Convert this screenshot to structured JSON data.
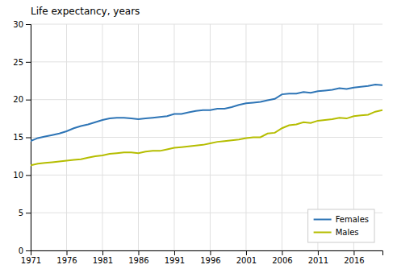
{
  "chart_data": {
    "type": "line",
    "title": "Life expectancy, years",
    "x": [
      1971,
      1972,
      1973,
      1974,
      1975,
      1976,
      1977,
      1978,
      1979,
      1980,
      1981,
      1982,
      1983,
      1984,
      1985,
      1986,
      1987,
      1988,
      1989,
      1990,
      1991,
      1992,
      1993,
      1994,
      1995,
      1996,
      1997,
      1998,
      1999,
      2000,
      2001,
      2002,
      2003,
      2004,
      2005,
      2006,
      2007,
      2008,
      2009,
      2010,
      2011,
      2012,
      2013,
      2014,
      2015,
      2016,
      2017,
      2018,
      2019,
      2020
    ],
    "series": [
      {
        "name": "Females",
        "color": "#2e75b6",
        "values": [
          14.5,
          14.9,
          15.1,
          15.3,
          15.5,
          15.8,
          16.2,
          16.5,
          16.7,
          17.0,
          17.3,
          17.5,
          17.6,
          17.6,
          17.5,
          17.4,
          17.5,
          17.6,
          17.7,
          17.8,
          18.1,
          18.1,
          18.3,
          18.5,
          18.6,
          18.6,
          18.8,
          18.8,
          19.0,
          19.3,
          19.5,
          19.6,
          19.7,
          19.9,
          20.1,
          20.7,
          20.8,
          20.8,
          21.0,
          20.9,
          21.1,
          21.2,
          21.3,
          21.5,
          21.4,
          21.6,
          21.7,
          21.8,
          22.0,
          21.9
        ]
      },
      {
        "name": "Males",
        "color": "#b5bd00",
        "values": [
          11.3,
          11.5,
          11.6,
          11.7,
          11.8,
          11.9,
          12.0,
          12.1,
          12.3,
          12.5,
          12.6,
          12.8,
          12.9,
          13.0,
          13.0,
          12.9,
          13.1,
          13.2,
          13.2,
          13.4,
          13.6,
          13.7,
          13.8,
          13.9,
          14.0,
          14.2,
          14.4,
          14.5,
          14.6,
          14.7,
          14.9,
          15.0,
          15.0,
          15.5,
          15.6,
          16.2,
          16.6,
          16.7,
          17.0,
          16.9,
          17.2,
          17.3,
          17.4,
          17.6,
          17.5,
          17.8,
          17.9,
          18.0,
          18.4,
          18.6
        ]
      }
    ],
    "xlim": [
      1971,
      2020
    ],
    "xticks": [
      1971,
      1976,
      1981,
      1986,
      1991,
      1996,
      2001,
      2006,
      2011,
      2016
    ],
    "ylim": [
      0,
      30
    ],
    "yticks": [
      0,
      5,
      10,
      15,
      20,
      25,
      30
    ],
    "grid": true,
    "legend": "lower right"
  }
}
